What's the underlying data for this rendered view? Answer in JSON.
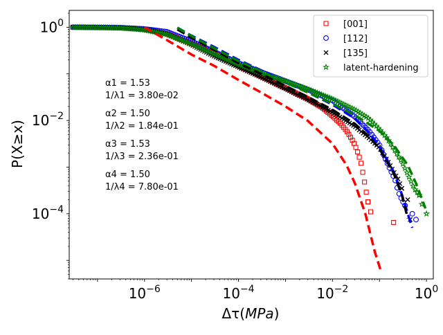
{
  "chart_data": {
    "type": "scatter",
    "xlabel_base": "Δτ(",
    "xlabel_italic": "MPa",
    "xlabel_end": ")",
    "ylabel": "P(X≥x)",
    "xscale": "log",
    "yscale": "log",
    "xlim": [
      2.5e-08,
      1.4
    ],
    "ylim": [
      4e-06,
      2.3
    ],
    "xticks": [
      {
        "base": "10",
        "exp": "−6",
        "value": 1e-06
      },
      {
        "base": "10",
        "exp": "−4",
        "value": 0.0001
      },
      {
        "base": "10",
        "exp": "−2",
        "value": 0.01
      },
      {
        "base": "10",
        "exp": "0",
        "value": 1
      }
    ],
    "yticks": [
      {
        "base": "10",
        "exp": "−4",
        "value": 0.0001
      },
      {
        "base": "10",
        "exp": "−2",
        "value": 0.01
      },
      {
        "base": "10",
        "exp": "0",
        "value": 1
      }
    ],
    "legend": {
      "placement": "top-right"
    },
    "annotations": [
      [
        "α1 = 1.53",
        "1/λ1 = 3.80e-02"
      ],
      [
        "α2 = 1.50",
        "1/λ2 = 1.84e-01"
      ],
      [
        "α3 = 1.53",
        "1/λ3 = 2.36e-01"
      ],
      [
        "α4 = 1.50",
        "1/λ4 = 7.80e-01"
      ]
    ],
    "series": [
      {
        "name": "[001]",
        "marker": "square",
        "color": "#ff0000",
        "points": [
          [
            3e-08,
            1.0
          ],
          [
            1e-07,
            0.99
          ],
          [
            3e-07,
            0.97
          ],
          [
            1e-06,
            0.9
          ],
          [
            3e-06,
            0.72
          ],
          [
            1e-05,
            0.45
          ],
          [
            3e-05,
            0.28
          ],
          [
            0.0001,
            0.15
          ],
          [
            0.0003,
            0.09
          ],
          [
            0.001,
            0.05
          ],
          [
            0.003,
            0.029
          ],
          [
            0.006,
            0.019
          ],
          [
            0.01,
            0.0125
          ],
          [
            0.015,
            0.0085
          ],
          [
            0.02,
            0.006
          ],
          [
            0.025,
            0.0042
          ],
          [
            0.03,
            0.003
          ],
          [
            0.035,
            0.002
          ],
          [
            0.04,
            0.0013
          ],
          [
            0.043,
            0.0009
          ],
          [
            0.047,
            0.00055
          ],
          [
            0.05,
            0.00038
          ],
          [
            0.053,
            0.00027
          ],
          [
            0.057,
            0.00018
          ],
          [
            0.065,
            0.00011
          ],
          [
            0.2,
            6.5e-05
          ]
        ],
        "fit": {
          "color": "#ff0000",
          "points": [
            [
              1e-06,
              1.0
            ],
            [
              3e-06,
              0.53
            ],
            [
              1e-05,
              0.26
            ],
            [
              3e-05,
              0.15
            ],
            [
              0.0001,
              0.074
            ],
            [
              0.0003,
              0.04
            ],
            [
              0.001,
              0.02
            ],
            [
              0.003,
              0.0098
            ],
            [
              0.01,
              0.0032
            ],
            [
              0.02,
              0.0011
            ],
            [
              0.03,
              0.00045
            ],
            [
              0.05,
              0.0001
            ],
            [
              0.08,
              1.5e-05
            ],
            [
              0.11,
              5.5e-06
            ]
          ]
        }
      },
      {
        "name": "[112]",
        "marker": "circle",
        "color": "#0000ff",
        "points": [
          [
            3e-08,
            1.0
          ],
          [
            1e-07,
            0.99
          ],
          [
            3e-07,
            0.98
          ],
          [
            1e-06,
            0.92
          ],
          [
            3e-06,
            0.8
          ],
          [
            1e-05,
            0.5
          ],
          [
            3e-05,
            0.3
          ],
          [
            0.0001,
            0.17
          ],
          [
            0.0003,
            0.11
          ],
          [
            0.001,
            0.07
          ],
          [
            0.003,
            0.046
          ],
          [
            0.01,
            0.027
          ],
          [
            0.03,
            0.012
          ],
          [
            0.06,
            0.006
          ],
          [
            0.1,
            0.003
          ],
          [
            0.13,
            0.0016
          ],
          [
            0.16,
            0.001
          ],
          [
            0.19,
            0.0007
          ],
          [
            0.22,
            0.0005
          ],
          [
            0.25,
            0.0003
          ],
          [
            0.3,
            0.0002
          ],
          [
            0.35,
            0.00015
          ],
          [
            0.5,
            0.0001
          ],
          [
            0.6,
            7.5e-05
          ]
        ],
        "fit": {
          "color": "#0000ff",
          "points": [
            [
              5e-06,
              0.98
            ],
            [
              1e-05,
              0.66
            ],
            [
              3e-05,
              0.38
            ],
            [
              0.0001,
              0.2
            ],
            [
              0.0003,
              0.12
            ],
            [
              0.001,
              0.065
            ],
            [
              0.003,
              0.04
            ],
            [
              0.01,
              0.022
            ],
            [
              0.03,
              0.011
            ],
            [
              0.06,
              0.0055
            ],
            [
              0.1,
              0.0028
            ],
            [
              0.2,
              0.0008
            ],
            [
              0.3,
              0.00026
            ],
            [
              0.4,
              0.0001
            ],
            [
              0.5,
              5e-05
            ]
          ]
        }
      },
      {
        "name": "[135]",
        "marker": "x",
        "color": "#000000",
        "points": [
          [
            3e-08,
            1.0
          ],
          [
            1e-07,
            0.99
          ],
          [
            3e-07,
            0.98
          ],
          [
            1e-06,
            0.9
          ],
          [
            3e-06,
            0.72
          ],
          [
            1e-05,
            0.42
          ],
          [
            3e-05,
            0.24
          ],
          [
            0.0001,
            0.14
          ],
          [
            0.0003,
            0.085
          ],
          [
            0.001,
            0.048
          ],
          [
            0.003,
            0.028
          ],
          [
            0.01,
            0.015
          ],
          [
            0.03,
            0.0075
          ],
          [
            0.06,
            0.0042
          ],
          [
            0.1,
            0.0026
          ],
          [
            0.13,
            0.0017
          ],
          [
            0.16,
            0.0012
          ],
          [
            0.2,
            0.0008
          ],
          [
            0.25,
            0.00055
          ],
          [
            0.3,
            0.00035
          ],
          [
            0.4,
            0.0002
          ],
          [
            0.45,
            7.5e-05
          ]
        ],
        "fit": {
          "color": "#000000",
          "points": [
            [
              5e-06,
              0.9
            ],
            [
              1e-05,
              0.6
            ],
            [
              3e-05,
              0.33
            ],
            [
              0.0001,
              0.17
            ],
            [
              0.0003,
              0.1
            ],
            [
              0.001,
              0.055
            ],
            [
              0.003,
              0.032
            ],
            [
              0.01,
              0.017
            ],
            [
              0.03,
              0.0085
            ],
            [
              0.06,
              0.0045
            ],
            [
              0.1,
              0.0025
            ],
            [
              0.2,
              0.00075
            ],
            [
              0.3,
              0.00025
            ],
            [
              0.4,
              8e-05
            ]
          ]
        }
      },
      {
        "name": "latent-hardening",
        "marker": "star",
        "color": "#008000",
        "points": [
          [
            3e-08,
            1.0
          ],
          [
            1e-07,
            0.99
          ],
          [
            3e-07,
            0.97
          ],
          [
            1e-06,
            0.88
          ],
          [
            3e-06,
            0.7
          ],
          [
            1e-05,
            0.44
          ],
          [
            3e-05,
            0.27
          ],
          [
            0.0001,
            0.16
          ],
          [
            0.0003,
            0.105
          ],
          [
            0.001,
            0.07
          ],
          [
            0.003,
            0.047
          ],
          [
            0.01,
            0.029
          ],
          [
            0.03,
            0.017
          ],
          [
            0.06,
            0.011
          ],
          [
            0.1,
            0.0065
          ],
          [
            0.15,
            0.004
          ],
          [
            0.2,
            0.0025
          ],
          [
            0.3,
            0.0013
          ],
          [
            0.4,
            0.0007
          ],
          [
            0.55,
            0.00035
          ],
          [
            0.7,
            0.00025
          ],
          [
            0.8,
            0.00016
          ],
          [
            1.0,
            0.0001
          ]
        ],
        "fit": {
          "color": "#008000",
          "points": [
            [
              5e-06,
              0.98
            ],
            [
              1e-05,
              0.65
            ],
            [
              3e-05,
              0.36
            ],
            [
              0.0001,
              0.19
            ],
            [
              0.0003,
              0.115
            ],
            [
              0.001,
              0.065
            ],
            [
              0.003,
              0.04
            ],
            [
              0.01,
              0.023
            ],
            [
              0.03,
              0.013
            ],
            [
              0.1,
              0.006
            ],
            [
              0.2,
              0.003
            ],
            [
              0.4,
              0.0011
            ],
            [
              0.6,
              0.00045
            ],
            [
              0.8,
              0.00021
            ],
            [
              0.95,
              0.00013
            ]
          ]
        }
      }
    ]
  }
}
